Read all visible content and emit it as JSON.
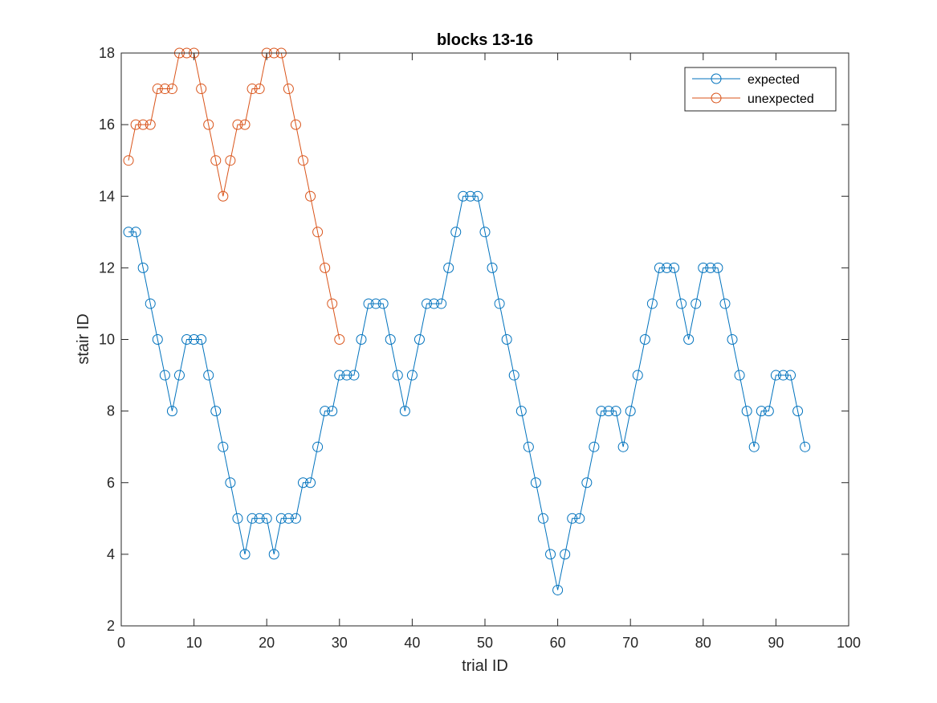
{
  "chart_data": {
    "type": "line",
    "title": "blocks 13-16",
    "xlabel": "trial ID",
    "ylabel": "stair ID",
    "xlim": [
      0,
      100
    ],
    "ylim": [
      2,
      18
    ],
    "xticks": [
      0,
      10,
      20,
      30,
      40,
      50,
      60,
      70,
      80,
      90,
      100
    ],
    "yticks": [
      2,
      4,
      6,
      8,
      10,
      12,
      14,
      16,
      18
    ],
    "grid": false,
    "legend_position": "top-right",
    "marker": "circle",
    "series": [
      {
        "name": "expected",
        "color": "#0072BD",
        "x": [
          1,
          2,
          3,
          4,
          5,
          6,
          7,
          8,
          9,
          10,
          11,
          12,
          13,
          14,
          15,
          16,
          17,
          18,
          19,
          20,
          21,
          22,
          23,
          24,
          25,
          26,
          27,
          28,
          29,
          30,
          31,
          32,
          33,
          34,
          35,
          36,
          37,
          38,
          39,
          40,
          41,
          42,
          43,
          44,
          45,
          46,
          47,
          48,
          49,
          50,
          51,
          52,
          53,
          54,
          55,
          56,
          57,
          58,
          59,
          60,
          61,
          62,
          63,
          64,
          65,
          66,
          67,
          68,
          69,
          70,
          71,
          72,
          73,
          74,
          75,
          76,
          77,
          78,
          79,
          80,
          81,
          82,
          83,
          84,
          85,
          86,
          87,
          88,
          89,
          90,
          91,
          92,
          93,
          94
        ],
        "y": [
          13,
          13,
          12,
          11,
          10,
          9,
          8,
          9,
          10,
          10,
          10,
          9,
          8,
          7,
          6,
          5,
          4,
          5,
          5,
          5,
          4,
          5,
          5,
          5,
          6,
          6,
          7,
          8,
          8,
          9,
          9,
          9,
          10,
          11,
          11,
          11,
          10,
          9,
          8,
          9,
          10,
          11,
          11,
          11,
          12,
          13,
          14,
          14,
          14,
          13,
          12,
          11,
          10,
          9,
          8,
          7,
          6,
          5,
          4,
          3,
          4,
          5,
          5,
          6,
          7,
          8,
          8,
          8,
          7,
          8,
          9,
          10,
          11,
          12,
          12,
          12,
          11,
          10,
          11,
          12,
          12,
          12,
          11,
          10,
          9,
          8,
          7,
          8,
          8,
          9,
          9,
          9,
          8,
          7
        ]
      },
      {
        "name": "unexpected",
        "color": "#D95319",
        "x": [
          1,
          2,
          3,
          4,
          5,
          6,
          7,
          8,
          9,
          10,
          11,
          12,
          13,
          14,
          15,
          16,
          17,
          18,
          19,
          20,
          21,
          22,
          23,
          24,
          25,
          26,
          27,
          28,
          29,
          30
        ],
        "y": [
          15,
          16,
          16,
          16,
          17,
          17,
          17,
          18,
          18,
          18,
          17,
          16,
          15,
          14,
          15,
          16,
          16,
          17,
          17,
          18,
          18,
          18,
          17,
          16,
          15,
          14,
          13,
          12,
          11,
          10
        ]
      }
    ]
  }
}
